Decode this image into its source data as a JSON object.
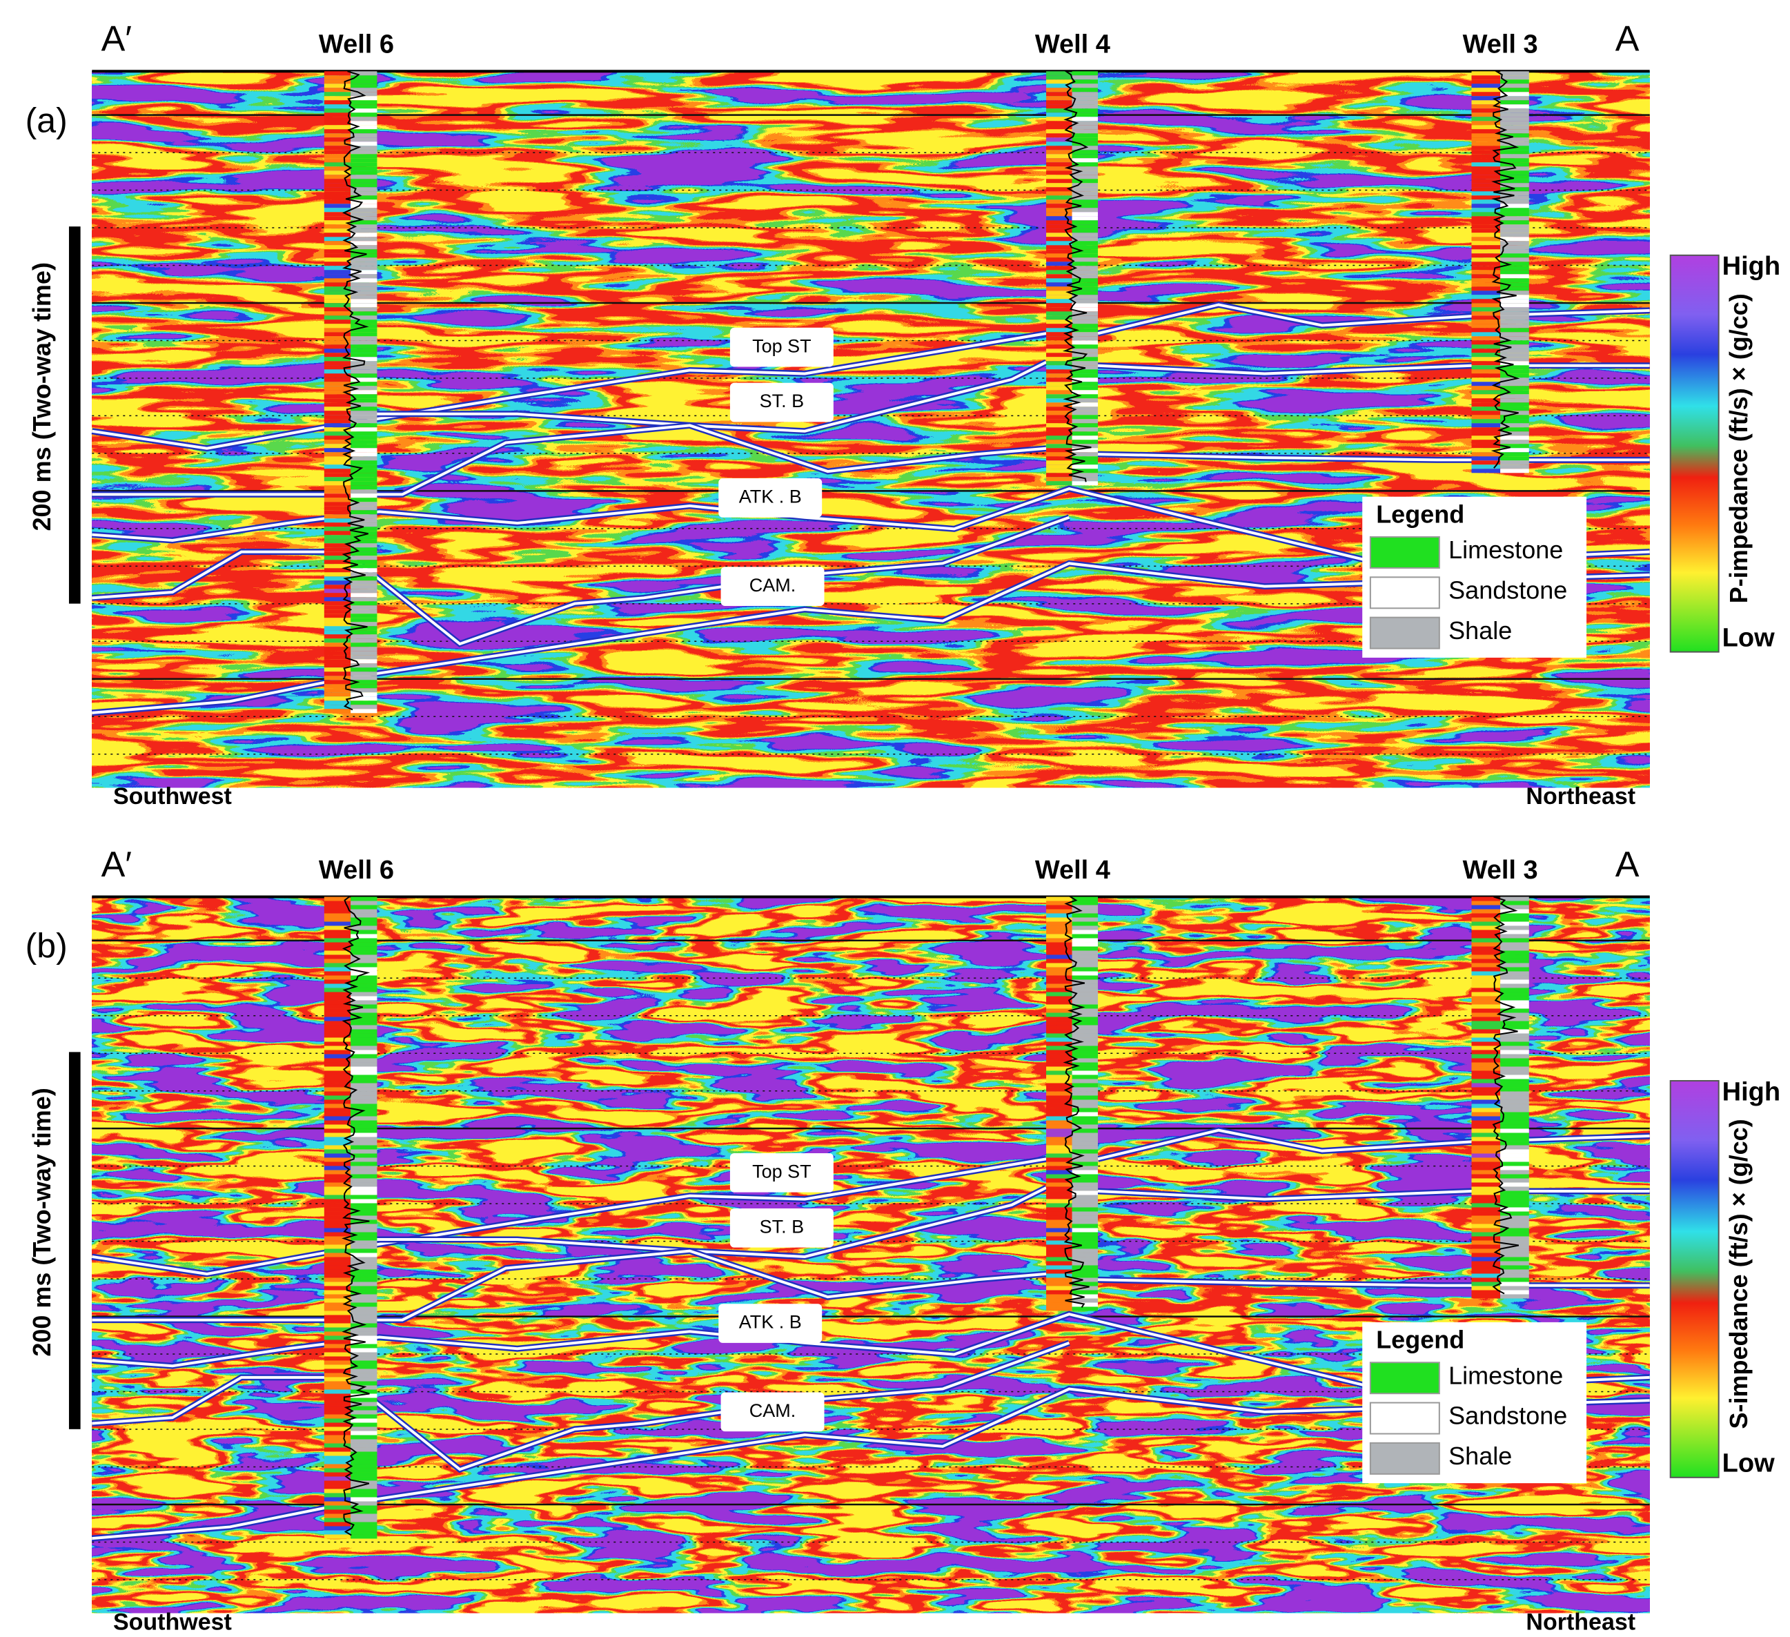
{
  "panels": [
    {
      "label": "(a)",
      "left_end": "A′",
      "right_end": "A",
      "wells": [
        "Well 6",
        "Well 4",
        "Well 3"
      ],
      "horizons": [
        "Top ST",
        "ST. B",
        "ATK . B",
        "CAM."
      ],
      "time_scale": "200 ms (Two-way time)",
      "directions": [
        "Southwest",
        "Northeast"
      ],
      "legend": {
        "title": "Legend",
        "items": [
          "Limestone",
          "Sandstone",
          "Shale"
        ]
      },
      "colorbar": {
        "title": "P-impedance (ft/s) × (g/cc)",
        "high": "High",
        "low": "Low"
      }
    },
    {
      "label": "(b)",
      "left_end": "A′",
      "right_end": "A",
      "wells": [
        "Well 6",
        "Well 4",
        "Well 3"
      ],
      "horizons": [
        "Top ST",
        "ST. B",
        "ATK . B",
        "CAM."
      ],
      "time_scale": "200 ms (Two-way time)",
      "directions": [
        "Southwest",
        "Northeast"
      ],
      "legend": {
        "title": "Legend",
        "items": [
          "Limestone",
          "Sandstone",
          "Shale"
        ]
      },
      "colorbar": {
        "title": "S-impedance (ft/s) × (g/cc)",
        "high": "High",
        "low": "Low"
      }
    }
  ]
}
